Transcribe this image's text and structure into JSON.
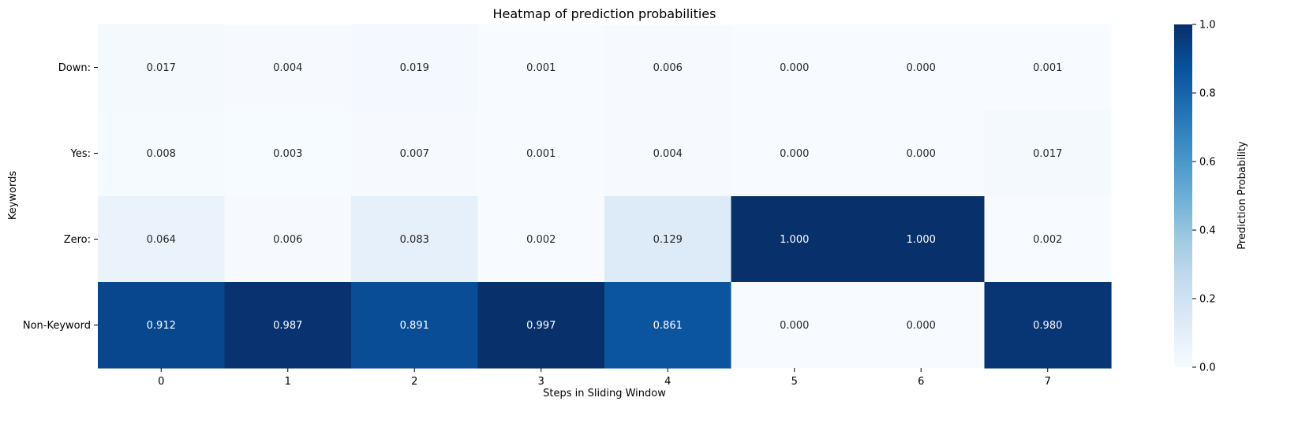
{
  "chart_data": {
    "type": "heatmap",
    "title": "Heatmap of prediction probabilities",
    "xlabel": "Steps in Sliding Window",
    "ylabel": "Keywords",
    "x_categories": [
      "0",
      "1",
      "2",
      "3",
      "4",
      "5",
      "6",
      "7"
    ],
    "y_categories": [
      "Down:",
      "Yes:",
      "Zero:",
      "Non-Keyword"
    ],
    "values": [
      [
        0.017,
        0.004,
        0.019,
        0.001,
        0.006,
        0.0,
        0.0,
        0.001
      ],
      [
        0.008,
        0.003,
        0.007,
        0.001,
        0.004,
        0.0,
        0.0,
        0.017
      ],
      [
        0.064,
        0.006,
        0.083,
        0.002,
        0.129,
        1.0,
        1.0,
        0.002
      ],
      [
        0.912,
        0.987,
        0.891,
        0.997,
        0.861,
        0.0,
        0.0,
        0.98
      ]
    ],
    "value_labels": [
      [
        "0.017",
        "0.004",
        "0.019",
        "0.001",
        "0.006",
        "0.000",
        "0.000",
        "0.001"
      ],
      [
        "0.008",
        "0.003",
        "0.007",
        "0.001",
        "0.004",
        "0.000",
        "0.000",
        "0.017"
      ],
      [
        "0.064",
        "0.006",
        "0.083",
        "0.002",
        "0.129",
        "1.000",
        "1.000",
        "0.002"
      ],
      [
        "0.912",
        "0.987",
        "0.891",
        "0.997",
        "0.861",
        "0.000",
        "0.000",
        "0.980"
      ]
    ],
    "colormap": "Blues",
    "colorbar": {
      "label": "Prediction Probability",
      "range": [
        0.0,
        1.0
      ],
      "ticks": [
        "0.0",
        "0.2",
        "0.4",
        "0.6",
        "0.8",
        "1.0"
      ]
    },
    "grid": false,
    "legend": "none"
  }
}
